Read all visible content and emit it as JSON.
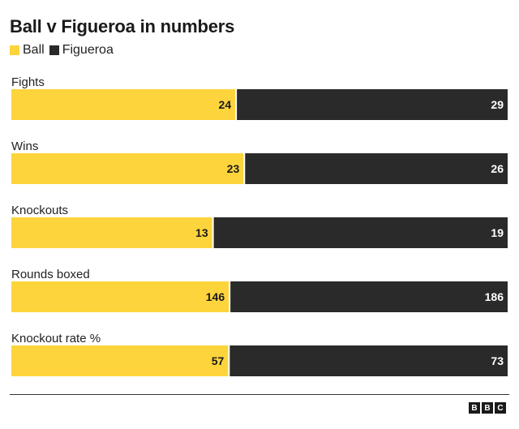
{
  "title": "Ball v Figueroa in numbers",
  "legend": [
    {
      "name": "Ball",
      "color": "#fdd43b"
    },
    {
      "name": "Figueroa",
      "color": "#2a2a2a"
    }
  ],
  "chart_data": {
    "type": "bar",
    "stacked": true,
    "orientation": "horizontal",
    "categories": [
      "Fights",
      "Wins",
      "Knockouts",
      "Rounds boxed",
      "Knockout rate %"
    ],
    "series": [
      {
        "name": "Ball",
        "values": [
          24,
          23,
          13,
          146,
          57
        ],
        "color": "#fdd43b"
      },
      {
        "name": "Figueroa",
        "values": [
          29,
          26,
          19,
          186,
          73
        ],
        "color": "#2a2a2a"
      }
    ],
    "title": "Ball v Figueroa in numbers",
    "legend_position": "top-left",
    "grid": false
  },
  "footer": {
    "logo": [
      "B",
      "B",
      "C"
    ]
  }
}
